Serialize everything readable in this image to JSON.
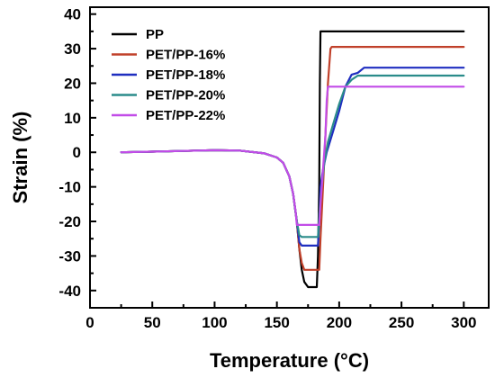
{
  "chart_data": {
    "type": "line",
    "title": "",
    "xlabel": "Temperature (°C)",
    "ylabel": "Strain (%)",
    "xlim": [
      0,
      320
    ],
    "ylim": [
      -45,
      42
    ],
    "xticks": [
      0,
      50,
      100,
      150,
      200,
      250,
      300
    ],
    "yticks": [
      -40,
      -30,
      -20,
      -10,
      0,
      10,
      20,
      30,
      40
    ],
    "grid": false,
    "legend_position": "top-left",
    "series": [
      {
        "name": "PP",
        "color": "#000000",
        "points": [
          [
            25,
            0
          ],
          [
            50,
            0.2
          ],
          [
            75,
            0.4
          ],
          [
            100,
            0.6
          ],
          [
            120,
            0.5
          ],
          [
            140,
            -0.3
          ],
          [
            150,
            -1.5
          ],
          [
            155,
            -3
          ],
          [
            160,
            -7
          ],
          [
            163,
            -12
          ],
          [
            166,
            -20
          ],
          [
            168,
            -28
          ],
          [
            170,
            -34
          ],
          [
            172,
            -37.5
          ],
          [
            175,
            -39
          ],
          [
            178,
            -39
          ],
          [
            182,
            -39
          ],
          [
            183,
            -30
          ],
          [
            184,
            -10
          ],
          [
            184.5,
            20
          ],
          [
            185,
            35
          ],
          [
            200,
            35
          ],
          [
            250,
            35
          ],
          [
            300,
            35
          ]
        ]
      },
      {
        "name": "PET/PP-16%",
        "color": "#c0402a",
        "points": [
          [
            25,
            0
          ],
          [
            50,
            0.2
          ],
          [
            75,
            0.4
          ],
          [
            100,
            0.6
          ],
          [
            120,
            0.5
          ],
          [
            140,
            -0.3
          ],
          [
            150,
            -1.5
          ],
          [
            155,
            -3
          ],
          [
            160,
            -7
          ],
          [
            163,
            -12
          ],
          [
            166,
            -20
          ],
          [
            168,
            -28
          ],
          [
            170,
            -32
          ],
          [
            172,
            -34
          ],
          [
            180,
            -34
          ],
          [
            184,
            -34
          ],
          [
            185,
            -25
          ],
          [
            187,
            -10
          ],
          [
            189,
            5
          ],
          [
            191,
            20
          ],
          [
            193,
            30
          ],
          [
            194,
            30.5
          ],
          [
            200,
            30.5
          ],
          [
            250,
            30.5
          ],
          [
            300,
            30.5
          ]
        ]
      },
      {
        "name": "PET/PP-18%",
        "color": "#1f2ec0",
        "points": [
          [
            25,
            0
          ],
          [
            50,
            0.2
          ],
          [
            75,
            0.4
          ],
          [
            100,
            0.6
          ],
          [
            120,
            0.5
          ],
          [
            140,
            -0.3
          ],
          [
            150,
            -1.5
          ],
          [
            155,
            -3
          ],
          [
            160,
            -7
          ],
          [
            163,
            -12
          ],
          [
            166,
            -20
          ],
          [
            168,
            -26
          ],
          [
            170,
            -27
          ],
          [
            180,
            -27
          ],
          [
            183,
            -27
          ],
          [
            184,
            -20
          ],
          [
            185,
            -10
          ],
          [
            187,
            -5
          ],
          [
            190,
            0
          ],
          [
            195,
            6
          ],
          [
            200,
            12
          ],
          [
            205,
            19
          ],
          [
            210,
            22.5
          ],
          [
            215,
            23
          ],
          [
            220,
            24.5
          ],
          [
            230,
            24.5
          ],
          [
            250,
            24.5
          ],
          [
            300,
            24.5
          ]
        ]
      },
      {
        "name": "PET/PP-20%",
        "color": "#2a8c8a",
        "points": [
          [
            25,
            0
          ],
          [
            50,
            0.2
          ],
          [
            75,
            0.4
          ],
          [
            100,
            0.6
          ],
          [
            120,
            0.5
          ],
          [
            140,
            -0.3
          ],
          [
            150,
            -1.5
          ],
          [
            155,
            -3
          ],
          [
            160,
            -7
          ],
          [
            163,
            -12
          ],
          [
            166,
            -20
          ],
          [
            168,
            -24
          ],
          [
            170,
            -24.5
          ],
          [
            180,
            -24.5
          ],
          [
            183,
            -24.5
          ],
          [
            184,
            -18
          ],
          [
            186,
            -10
          ],
          [
            188,
            -3
          ],
          [
            191,
            3
          ],
          [
            195,
            8
          ],
          [
            200,
            14
          ],
          [
            205,
            19
          ],
          [
            210,
            21
          ],
          [
            215,
            22.2
          ],
          [
            230,
            22.2
          ],
          [
            250,
            22.2
          ],
          [
            300,
            22.2
          ]
        ]
      },
      {
        "name": "PET/PP-22%",
        "color": "#c24ce8",
        "points": [
          [
            25,
            0
          ],
          [
            50,
            0.2
          ],
          [
            75,
            0.4
          ],
          [
            100,
            0.6
          ],
          [
            120,
            0.5
          ],
          [
            140,
            -0.3
          ],
          [
            150,
            -1.5
          ],
          [
            155,
            -3
          ],
          [
            160,
            -7
          ],
          [
            163,
            -12
          ],
          [
            165,
            -17
          ],
          [
            166,
            -21
          ],
          [
            170,
            -21
          ],
          [
            180,
            -21
          ],
          [
            184,
            -21
          ],
          [
            185,
            -15
          ],
          [
            187,
            -5
          ],
          [
            189,
            5
          ],
          [
            190,
            15
          ],
          [
            191,
            19
          ],
          [
            200,
            19
          ],
          [
            250,
            19
          ],
          [
            300,
            19
          ]
        ]
      }
    ]
  }
}
